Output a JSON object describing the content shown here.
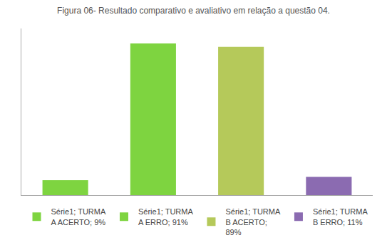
{
  "chart_data": {
    "type": "bar",
    "title": "Figura 06- Resultado comparativo e avaliativo em relação a questão 04.",
    "categories": [
      "Série1; TURMA\nA ACERTO; 9%",
      "Série1; TURMA\nA ERRO; 91%",
      "Série1; TURMA\nB ACERTO;\n89%",
      "Série1; TURMA\nB ERRO; 11%"
    ],
    "values": [
      9,
      91,
      89,
      11
    ],
    "colors": [
      "#7ed440",
      "#7ed440",
      "#b5c95a",
      "#8b6bb1"
    ],
    "ylim": [
      0,
      100
    ],
    "grid": false,
    "tick_labels": false,
    "legend": "bottom"
  }
}
